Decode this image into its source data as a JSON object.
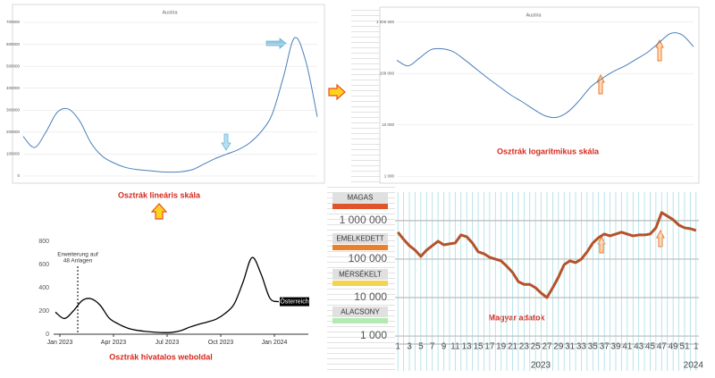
{
  "chart_data": [
    {
      "type": "line",
      "title": "Austria",
      "caption": "Osztrák lineáris skála",
      "color": "#4a7ebb",
      "values": [
        180000,
        130000,
        200000,
        290000,
        305000,
        250000,
        150000,
        90000,
        60000,
        40000,
        30000,
        25000,
        20000,
        18000,
        20000,
        30000,
        55000,
        80000,
        100000,
        120000,
        150000,
        200000,
        280000,
        450000,
        630000,
        520000,
        270000
      ],
      "ylim": [
        0,
        700000
      ],
      "yticks": [
        0,
        100000,
        200000,
        300000,
        400000,
        500000,
        600000,
        700000
      ],
      "grid": true
    },
    {
      "type": "line",
      "title": "Austria",
      "caption": "Osztrák logaritmikus skála",
      "color": "#4a7ebb",
      "yscale": "log",
      "values": [
        180000,
        140000,
        200000,
        290000,
        300000,
        260000,
        180000,
        120000,
        80000,
        55000,
        38000,
        28000,
        20000,
        15000,
        14000,
        18000,
        30000,
        55000,
        80000,
        110000,
        140000,
        190000,
        260000,
        400000,
        600000,
        560000,
        330000
      ],
      "ylim": [
        900,
        1300000
      ],
      "yticks": [
        {
          "value": 1000,
          "label": "1 000"
        },
        {
          "value": 10000,
          "label": "10 000"
        },
        {
          "value": 100000,
          "label": "100 000"
        },
        {
          "value": 1000000,
          "label": "1 000 000"
        }
      ],
      "grid": true
    },
    {
      "type": "line",
      "caption": "Osztrák hivatalos weboldal",
      "annotation": [
        "Erweiterung auf",
        "48 Anlagen"
      ],
      "x": [
        -0.25,
        0.25,
        0.75,
        1.25,
        1.75,
        2.25,
        2.75,
        3.25,
        3.75,
        4.25,
        4.75,
        5.25,
        5.75,
        6.25,
        6.75,
        7.25,
        7.75,
        8.25,
        8.75,
        9.25,
        9.75,
        10.25,
        10.75,
        11.25,
        11.75,
        12.25
      ],
      "series": [
        {
          "name": "Österreich",
          "color": "#000000",
          "values": [
            190,
            135,
            200,
            290,
            305,
            250,
            140,
            90,
            55,
            35,
            25,
            18,
            14,
            16,
            30,
            60,
            85,
            105,
            130,
            180,
            260,
            450,
            660,
            520,
            310,
            280
          ]
        }
      ],
      "xlim": [
        -0.35,
        13.9
      ],
      "xticks": [
        {
          "value": 0,
          "label": "Jan 2023"
        },
        {
          "value": 3,
          "label": "Apr 2023"
        },
        {
          "value": 6,
          "label": "Jul 2023"
        },
        {
          "value": 9,
          "label": "Oct 2023"
        },
        {
          "value": 12,
          "label": "Jan 2024"
        }
      ],
      "ylim": [
        0,
        800
      ],
      "yticks": [
        0,
        200,
        400,
        600,
        800
      ],
      "grid": false
    },
    {
      "type": "line",
      "caption": "Magyar adatok",
      "color": "#b5522a",
      "yscale": "log",
      "categories": [
        "1",
        null,
        "3",
        null,
        "5",
        null,
        "7",
        null,
        "9",
        null,
        "11",
        null,
        "13",
        null,
        "15",
        null,
        "17",
        null,
        "19",
        null,
        "21",
        null,
        "23",
        null,
        "25",
        null,
        "27",
        null,
        "29",
        null,
        "31",
        null,
        "33",
        null,
        "35",
        null,
        "37",
        null,
        "39",
        null,
        "41",
        null,
        "43",
        null,
        "45",
        null,
        "47",
        null,
        "49",
        null,
        "51",
        null,
        "1"
      ],
      "years": [
        "2023",
        "2024"
      ],
      "values": [
        500000,
        325000,
        223000,
        171000,
        117000,
        171000,
        223000,
        292000,
        235000,
        249000,
        262000,
        424000,
        381000,
        262000,
        154000,
        138000,
        111000,
        100000,
        90000,
        65000,
        45000,
        26000,
        22000,
        22000,
        18000,
        13000,
        10000,
        18000,
        34000,
        72000,
        90000,
        81000,
        100000,
        154000,
        262000,
        362000,
        448000,
        402000,
        448000,
        500000,
        448000,
        402000,
        424000,
        424000,
        448000,
        650000,
        1620000,
        1310000,
        1060000,
        765000,
        650000,
        618000,
        555000
      ],
      "ylim": [
        620,
        5500000
      ],
      "yticks": [
        {
          "value": 1000,
          "label": "1 000"
        },
        {
          "value": 10000,
          "label": "10 000"
        },
        {
          "value": 100000,
          "label": "100 000"
        },
        {
          "value": 1000000,
          "label": "1 000 000"
        }
      ],
      "grid": true,
      "levels": [
        {
          "name": "MAGAS",
          "color": "#e0542c"
        },
        {
          "name": "EMELKEDETT",
          "color": "#e8822f"
        },
        {
          "name": "MÉRSÉKELT",
          "color": "#f6d34e"
        },
        {
          "name": "ALACSONY",
          "color": "#b3eab0"
        }
      ]
    }
  ]
}
